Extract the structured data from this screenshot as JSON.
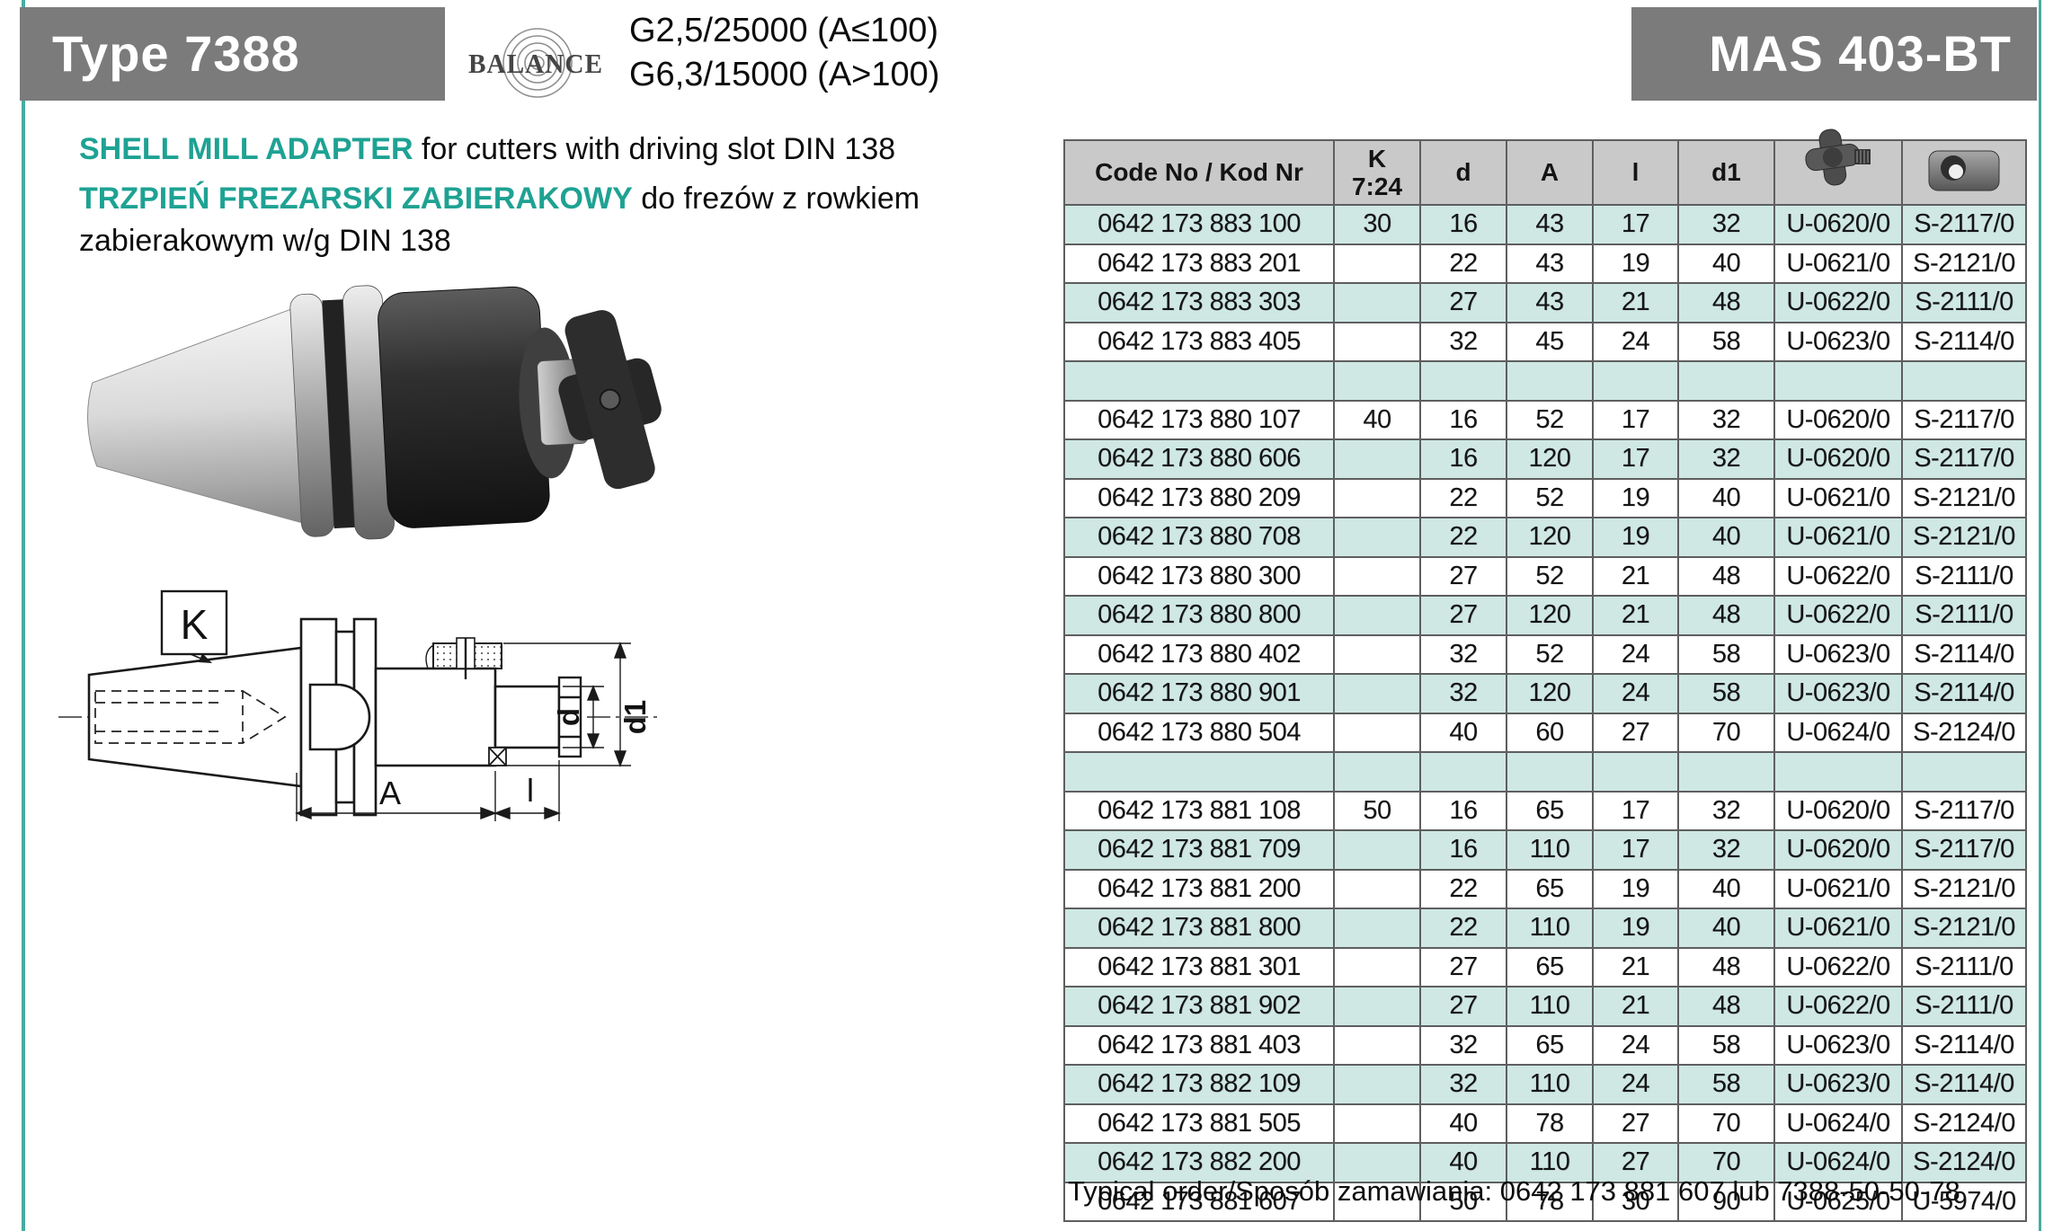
{
  "colors": {
    "accent_teal": "#1ea293",
    "edge_rule_teal": "#46aca2",
    "title_box_gray": "#7b7b7b",
    "table_header_gray": "#c9c9c9",
    "table_row_teal": "#cfe8e4",
    "table_border": "#5e5e5e"
  },
  "header": {
    "type_label": "Type 7388",
    "balance_logo_text": "BALANCE",
    "balance_specs": [
      "G2,5/25000 (A≤100)",
      "G6,3/15000 (A>100)"
    ],
    "standard_label": "MAS 403-BT"
  },
  "description": {
    "en_highlight": "SHELL MILL ADAPTER",
    "en_rest": " for cutters with driving slot DIN 138",
    "pl_highlight": "TRZPIEŃ FREZARSKI ZABIERAKOWY",
    "pl_rest": " do frezów z rowkiem",
    "pl_rest_line2": "zabierakowym w/g DIN 138"
  },
  "drawing": {
    "labels": {
      "k": "K",
      "a": "A",
      "l": "l",
      "d": "d",
      "d1": "d1"
    }
  },
  "table": {
    "col_headers": {
      "code": "Code No / Kod Nr",
      "k_top": "K",
      "k_bottom": "7:24",
      "d": "d",
      "a": "A",
      "l": "l",
      "d1": "d1",
      "screw_icon": "retention-screw-icon",
      "key_icon": "drive-key-icon"
    },
    "rows": [
      {
        "code": "0642 173 883 100",
        "k": "30",
        "d": "16",
        "a": "43",
        "l": "17",
        "d1": "32",
        "u": "U-0620/0",
        "s": "S-2117/0"
      },
      {
        "code": "0642 173 883 201",
        "k": "",
        "d": "22",
        "a": "43",
        "l": "19",
        "d1": "40",
        "u": "U-0621/0",
        "s": "S-2121/0"
      },
      {
        "code": "0642 173 883 303",
        "k": "",
        "d": "27",
        "a": "43",
        "l": "21",
        "d1": "48",
        "u": "U-0622/0",
        "s": "S-2111/0"
      },
      {
        "code": "0642 173 883 405",
        "k": "",
        "d": "32",
        "a": "45",
        "l": "24",
        "d1": "58",
        "u": "U-0623/0",
        "s": "S-2114/0"
      },
      {
        "spacer": true
      },
      {
        "code": "0642 173 880 107",
        "k": "40",
        "d": "16",
        "a": "52",
        "l": "17",
        "d1": "32",
        "u": "U-0620/0",
        "s": "S-2117/0"
      },
      {
        "code": "0642 173 880 606",
        "k": "",
        "d": "16",
        "a": "120",
        "l": "17",
        "d1": "32",
        "u": "U-0620/0",
        "s": "S-2117/0"
      },
      {
        "code": "0642 173 880 209",
        "k": "",
        "d": "22",
        "a": "52",
        "l": "19",
        "d1": "40",
        "u": "U-0621/0",
        "s": "S-2121/0"
      },
      {
        "code": "0642 173 880 708",
        "k": "",
        "d": "22",
        "a": "120",
        "l": "19",
        "d1": "40",
        "u": "U-0621/0",
        "s": "S-2121/0"
      },
      {
        "code": "0642 173 880 300",
        "k": "",
        "d": "27",
        "a": "52",
        "l": "21",
        "d1": "48",
        "u": "U-0622/0",
        "s": "S-2111/0"
      },
      {
        "code": "0642 173 880 800",
        "k": "",
        "d": "27",
        "a": "120",
        "l": "21",
        "d1": "48",
        "u": "U-0622/0",
        "s": "S-2111/0"
      },
      {
        "code": "0642 173 880 402",
        "k": "",
        "d": "32",
        "a": "52",
        "l": "24",
        "d1": "58",
        "u": "U-0623/0",
        "s": "S-2114/0"
      },
      {
        "code": "0642 173 880 901",
        "k": "",
        "d": "32",
        "a": "120",
        "l": "24",
        "d1": "58",
        "u": "U-0623/0",
        "s": "S-2114/0"
      },
      {
        "code": "0642 173 880 504",
        "k": "",
        "d": "40",
        "a": "60",
        "l": "27",
        "d1": "70",
        "u": "U-0624/0",
        "s": "S-2124/0"
      },
      {
        "spacer": true
      },
      {
        "code": "0642 173 881 108",
        "k": "50",
        "d": "16",
        "a": "65",
        "l": "17",
        "d1": "32",
        "u": "U-0620/0",
        "s": "S-2117/0"
      },
      {
        "code": "0642 173 881 709",
        "k": "",
        "d": "16",
        "a": "110",
        "l": "17",
        "d1": "32",
        "u": "U-0620/0",
        "s": "S-2117/0"
      },
      {
        "code": "0642 173 881 200",
        "k": "",
        "d": "22",
        "a": "65",
        "l": "19",
        "d1": "40",
        "u": "U-0621/0",
        "s": "S-2121/0"
      },
      {
        "code": "0642 173 881 800",
        "k": "",
        "d": "22",
        "a": "110",
        "l": "19",
        "d1": "40",
        "u": "U-0621/0",
        "s": "S-2121/0"
      },
      {
        "code": "0642 173 881 301",
        "k": "",
        "d": "27",
        "a": "65",
        "l": "21",
        "d1": "48",
        "u": "U-0622/0",
        "s": "S-2111/0"
      },
      {
        "code": "0642 173 881 902",
        "k": "",
        "d": "27",
        "a": "110",
        "l": "21",
        "d1": "48",
        "u": "U-0622/0",
        "s": "S-2111/0"
      },
      {
        "code": "0642 173 881 403",
        "k": "",
        "d": "32",
        "a": "65",
        "l": "24",
        "d1": "58",
        "u": "U-0623/0",
        "s": "S-2114/0"
      },
      {
        "code": "0642 173 882 109",
        "k": "",
        "d": "32",
        "a": "110",
        "l": "24",
        "d1": "58",
        "u": "U-0623/0",
        "s": "S-2114/0"
      },
      {
        "code": "0642 173 881 505",
        "k": "",
        "d": "40",
        "a": "78",
        "l": "27",
        "d1": "70",
        "u": "U-0624/0",
        "s": "S-2124/0"
      },
      {
        "code": "0642 173 882 200",
        "k": "",
        "d": "40",
        "a": "110",
        "l": "27",
        "d1": "70",
        "u": "U-0624/0",
        "s": "S-2124/0"
      },
      {
        "code": "0642 173 881 607",
        "k": "",
        "d": "50",
        "a": "78",
        "l": "30",
        "d1": "90",
        "u": "U-0625/0",
        "s": "U-5974/0"
      }
    ]
  },
  "footer": {
    "typical_order": "Typical order/Sposób zamawiania: 0642 173 881 607 lub 7388-50-50-78"
  }
}
